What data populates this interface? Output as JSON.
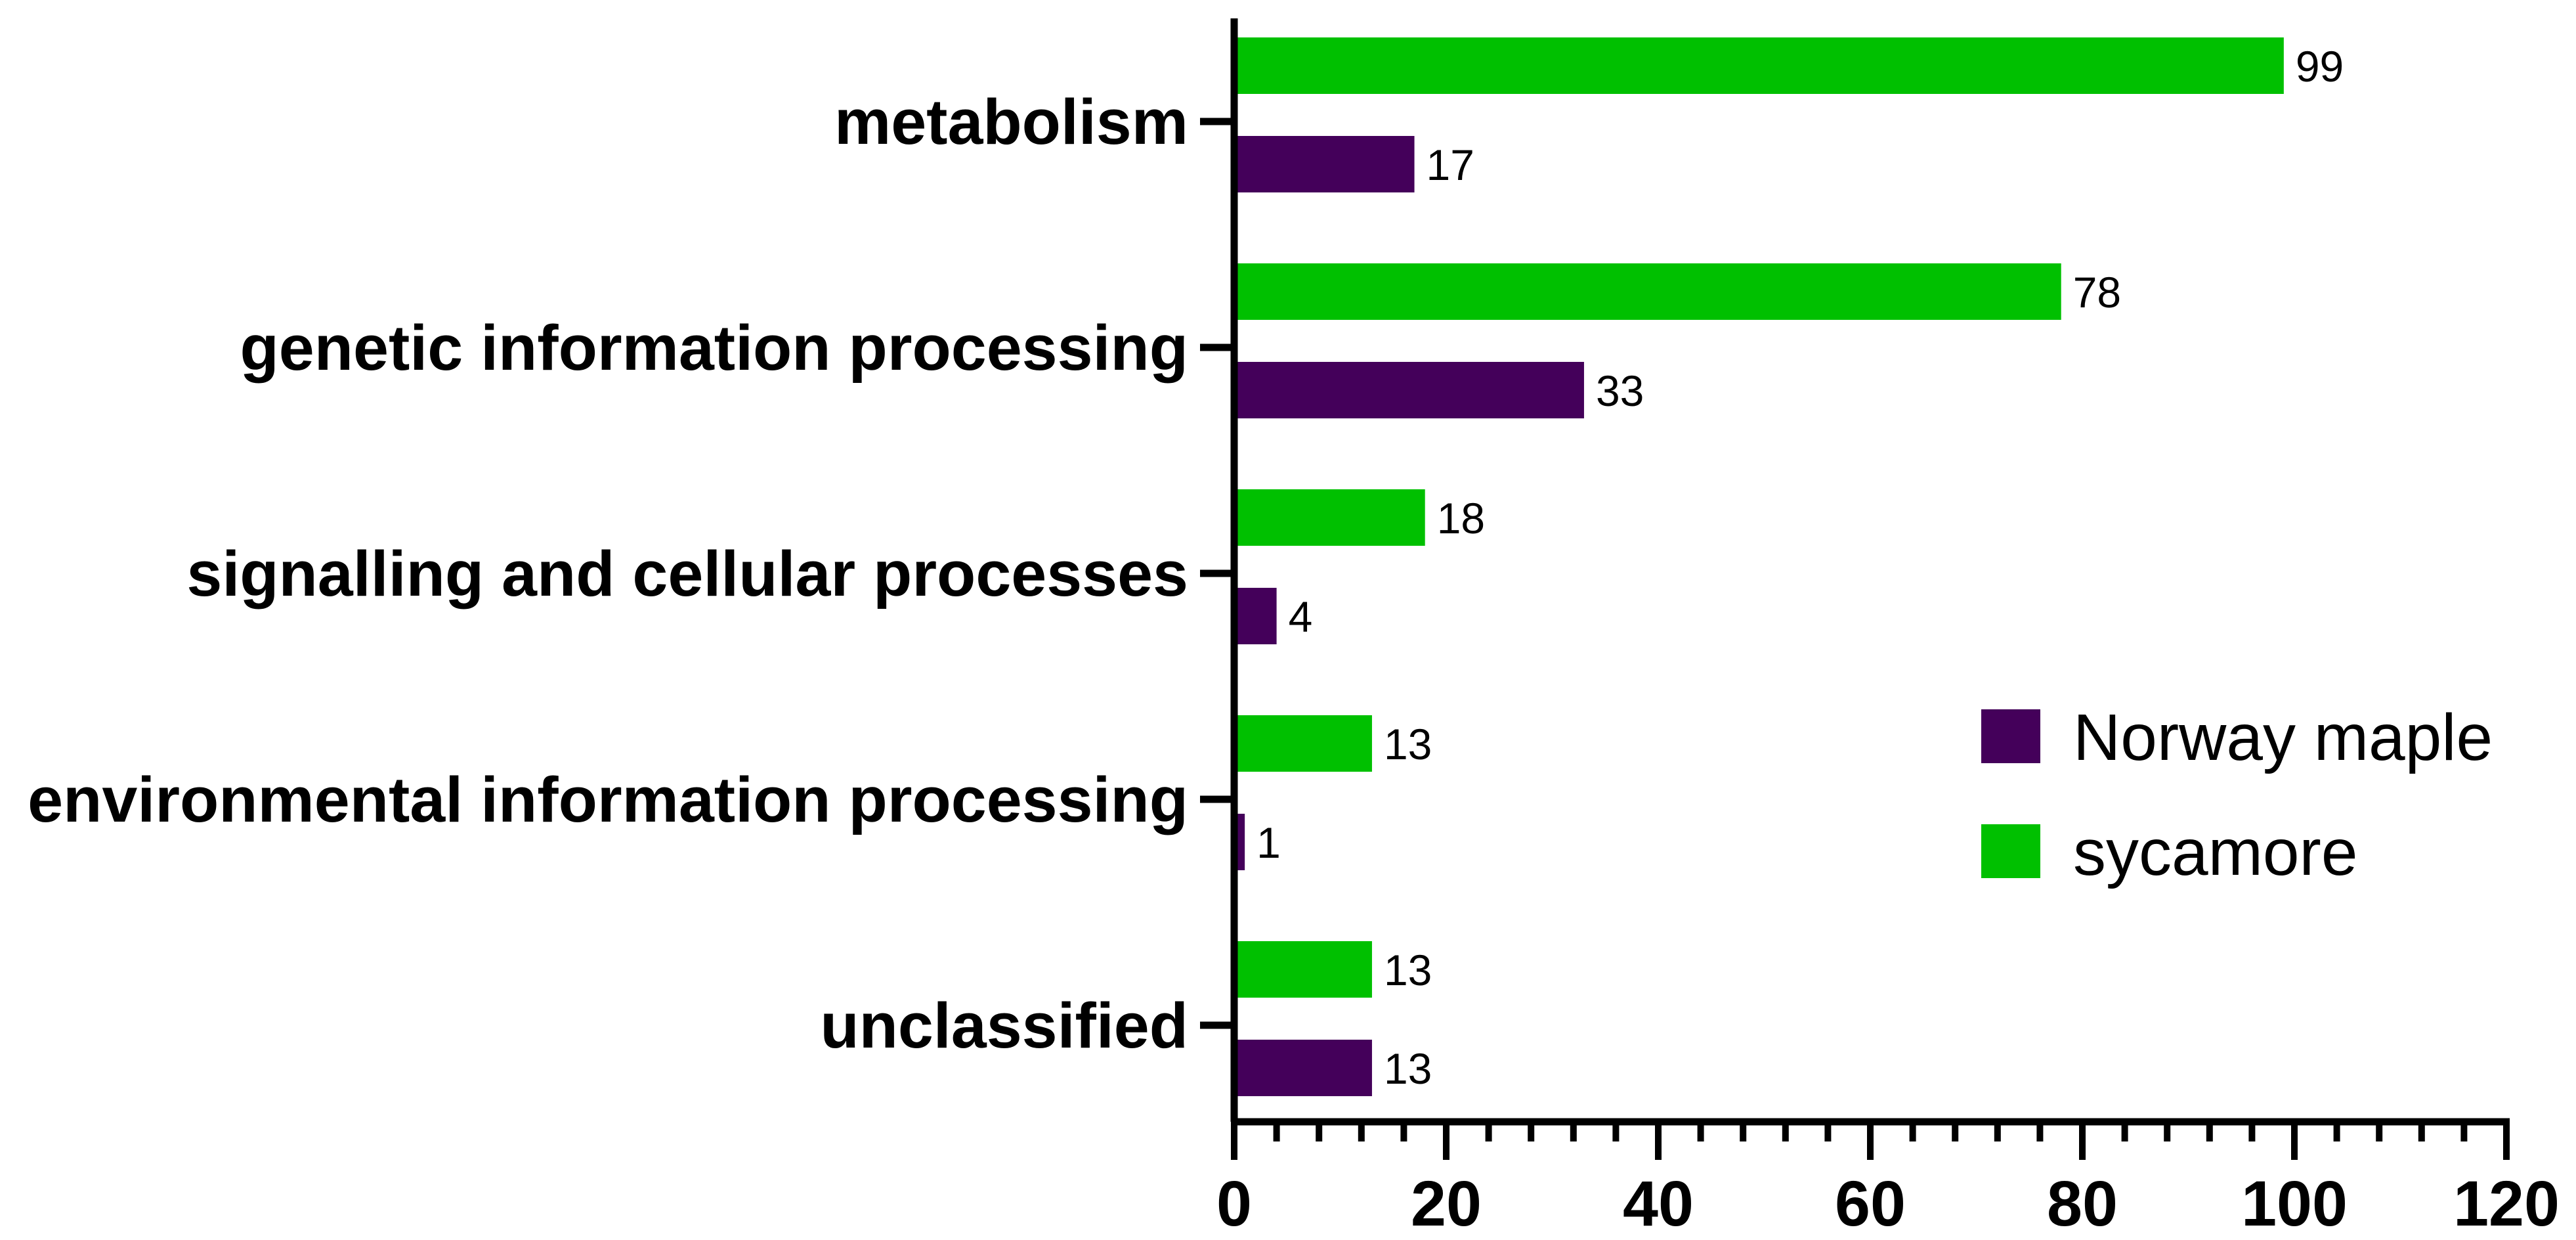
{
  "chart_data": {
    "type": "bar",
    "orientation": "horizontal",
    "categories": [
      "metabolism",
      "genetic information processing",
      "signalling and cellular processes",
      "environmental information processing",
      "unclassified"
    ],
    "series": [
      {
        "name": "sycamore",
        "color": "#00c000",
        "values": [
          99,
          78,
          18,
          13,
          13
        ]
      },
      {
        "name": "Norway maple",
        "color": "#44005a",
        "values": [
          17,
          33,
          4,
          1,
          13
        ]
      }
    ],
    "xlim": [
      0,
      120
    ],
    "xticks": [
      0,
      20,
      40,
      60,
      80,
      100,
      120
    ],
    "xlabel": "",
    "ylabel": "",
    "title": "",
    "grid": false,
    "legend": {
      "placement": "right",
      "entries": [
        {
          "label": "Norway maple",
          "color": "#44005a"
        },
        {
          "label": "sycamore",
          "color": "#00c000"
        }
      ]
    }
  }
}
